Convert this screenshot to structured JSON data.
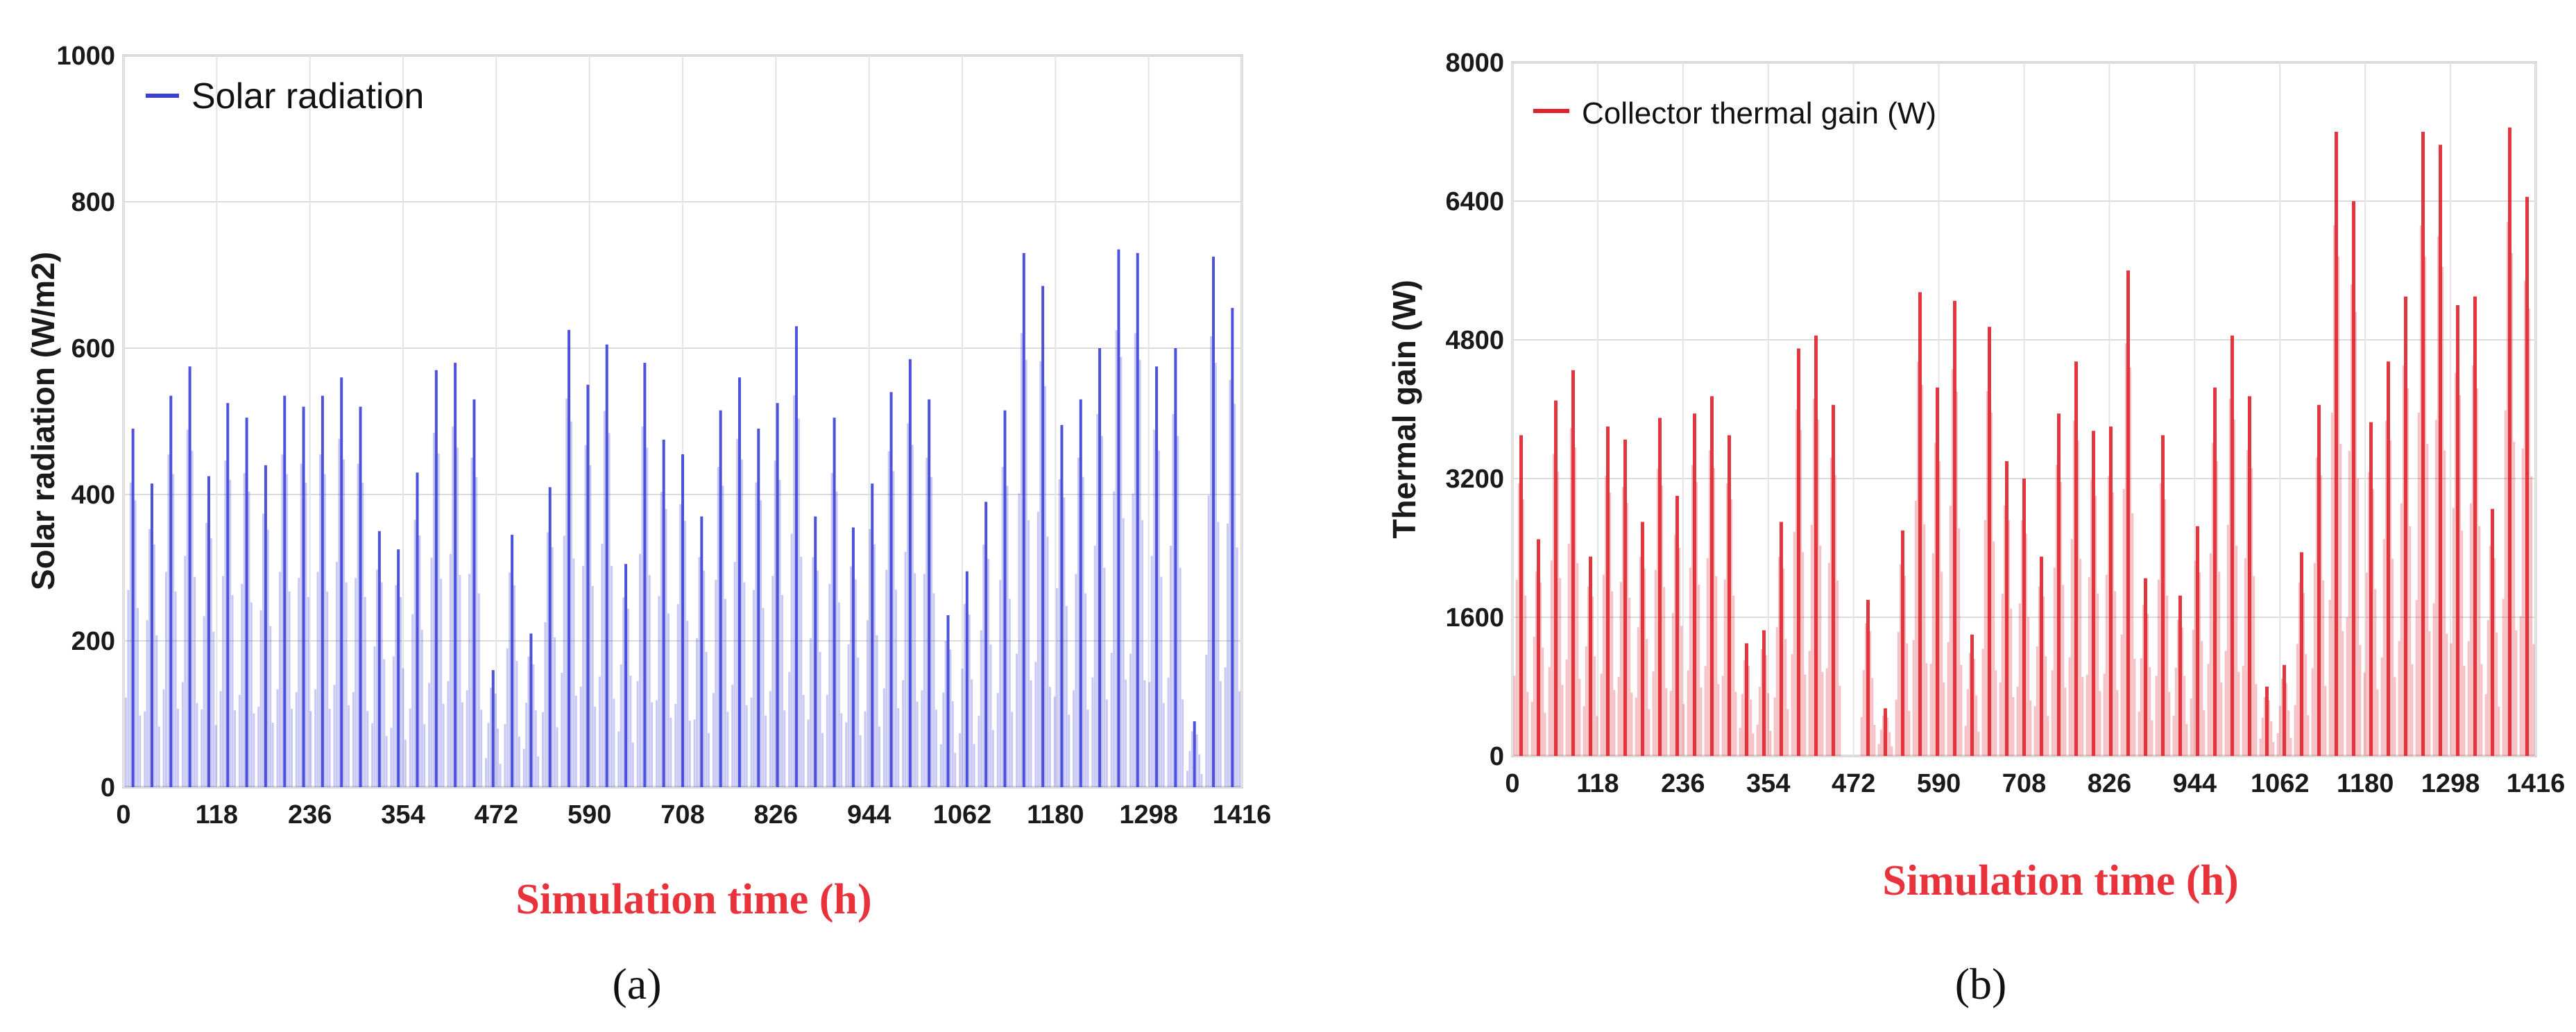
{
  "chart_data": [
    {
      "type": "bar",
      "panel_label": "(a)",
      "xlabel": "Simulation time (h)",
      "ylabel": "Solar radiation (W/m2)",
      "legend": "Solar radiation",
      "legend_position": "top-left",
      "color": "#3b3fd6",
      "xlim": [
        0,
        1416
      ],
      "ylim": [
        0,
        1000
      ],
      "xticks": [
        0,
        118,
        236,
        354,
        472,
        590,
        708,
        826,
        944,
        1062,
        1180,
        1298,
        1416
      ],
      "yticks": [
        0,
        200,
        400,
        600,
        800,
        1000
      ],
      "grid": true,
      "series": [
        {
          "x": [
            12,
            36,
            60,
            84,
            108,
            132,
            156,
            180,
            204,
            228,
            252,
            276,
            300,
            324,
            348,
            372,
            396,
            420,
            444,
            468,
            492,
            516,
            540,
            564,
            588,
            612,
            636,
            660,
            684,
            708,
            732,
            756,
            780,
            804,
            828,
            852,
            876,
            900,
            924,
            948,
            972,
            996,
            1020,
            1044,
            1068,
            1092,
            1116,
            1140,
            1164,
            1188,
            1212,
            1236,
            1260,
            1284,
            1308,
            1332,
            1356,
            1380,
            1404
          ],
          "values": [
            490,
            415,
            535,
            575,
            425,
            525,
            505,
            440,
            535,
            520,
            535,
            560,
            520,
            350,
            325,
            430,
            570,
            580,
            530,
            160,
            345,
            210,
            410,
            625,
            550,
            605,
            305,
            580,
            475,
            455,
            370,
            515,
            560,
            490,
            525,
            630,
            370,
            505,
            355,
            415,
            540,
            585,
            530,
            235,
            295,
            390,
            515,
            730,
            685,
            495,
            530,
            600,
            735,
            730,
            575,
            600,
            90,
            725,
            655
          ]
        }
      ]
    },
    {
      "type": "bar",
      "panel_label": "(b)",
      "xlabel": "Simulation time (h)",
      "ylabel": "Thermal gain (W)",
      "legend": "Collector thermal gain (W)",
      "legend_position": "top-left",
      "color": "#e0202a",
      "xlim": [
        0,
        1416
      ],
      "ylim": [
        0,
        8000
      ],
      "xticks": [
        0,
        118,
        236,
        354,
        472,
        590,
        708,
        826,
        944,
        1062,
        1180,
        1298,
        1416
      ],
      "yticks": [
        0,
        1600,
        3200,
        4800,
        6400,
        8000
      ],
      "grid": true,
      "series": [
        {
          "x": [
            12,
            36,
            60,
            84,
            108,
            132,
            156,
            180,
            204,
            228,
            252,
            276,
            300,
            324,
            348,
            372,
            396,
            420,
            444,
            468,
            492,
            516,
            540,
            564,
            588,
            612,
            636,
            660,
            684,
            708,
            732,
            756,
            780,
            804,
            828,
            852,
            876,
            900,
            924,
            948,
            972,
            996,
            1020,
            1044,
            1068,
            1092,
            1116,
            1140,
            1164,
            1188,
            1212,
            1236,
            1260,
            1284,
            1308,
            1332,
            1356,
            1380,
            1404
          ],
          "values": [
            3700,
            2500,
            4100,
            4450,
            2300,
            3800,
            3650,
            2700,
            3900,
            3000,
            3950,
            4150,
            3700,
            1300,
            1450,
            2700,
            4700,
            4850,
            4050,
            0,
            1800,
            550,
            2600,
            5350,
            4250,
            5250,
            1400,
            4950,
            3400,
            3200,
            2300,
            3950,
            4550,
            3750,
            3800,
            5600,
            2050,
            3700,
            1850,
            2650,
            4250,
            4850,
            4150,
            800,
            1050,
            2350,
            4050,
            7200,
            6400,
            3850,
            4550,
            5300,
            7200,
            7050,
            5200,
            5300,
            2850,
            7250,
            6450
          ]
        }
      ]
    }
  ]
}
